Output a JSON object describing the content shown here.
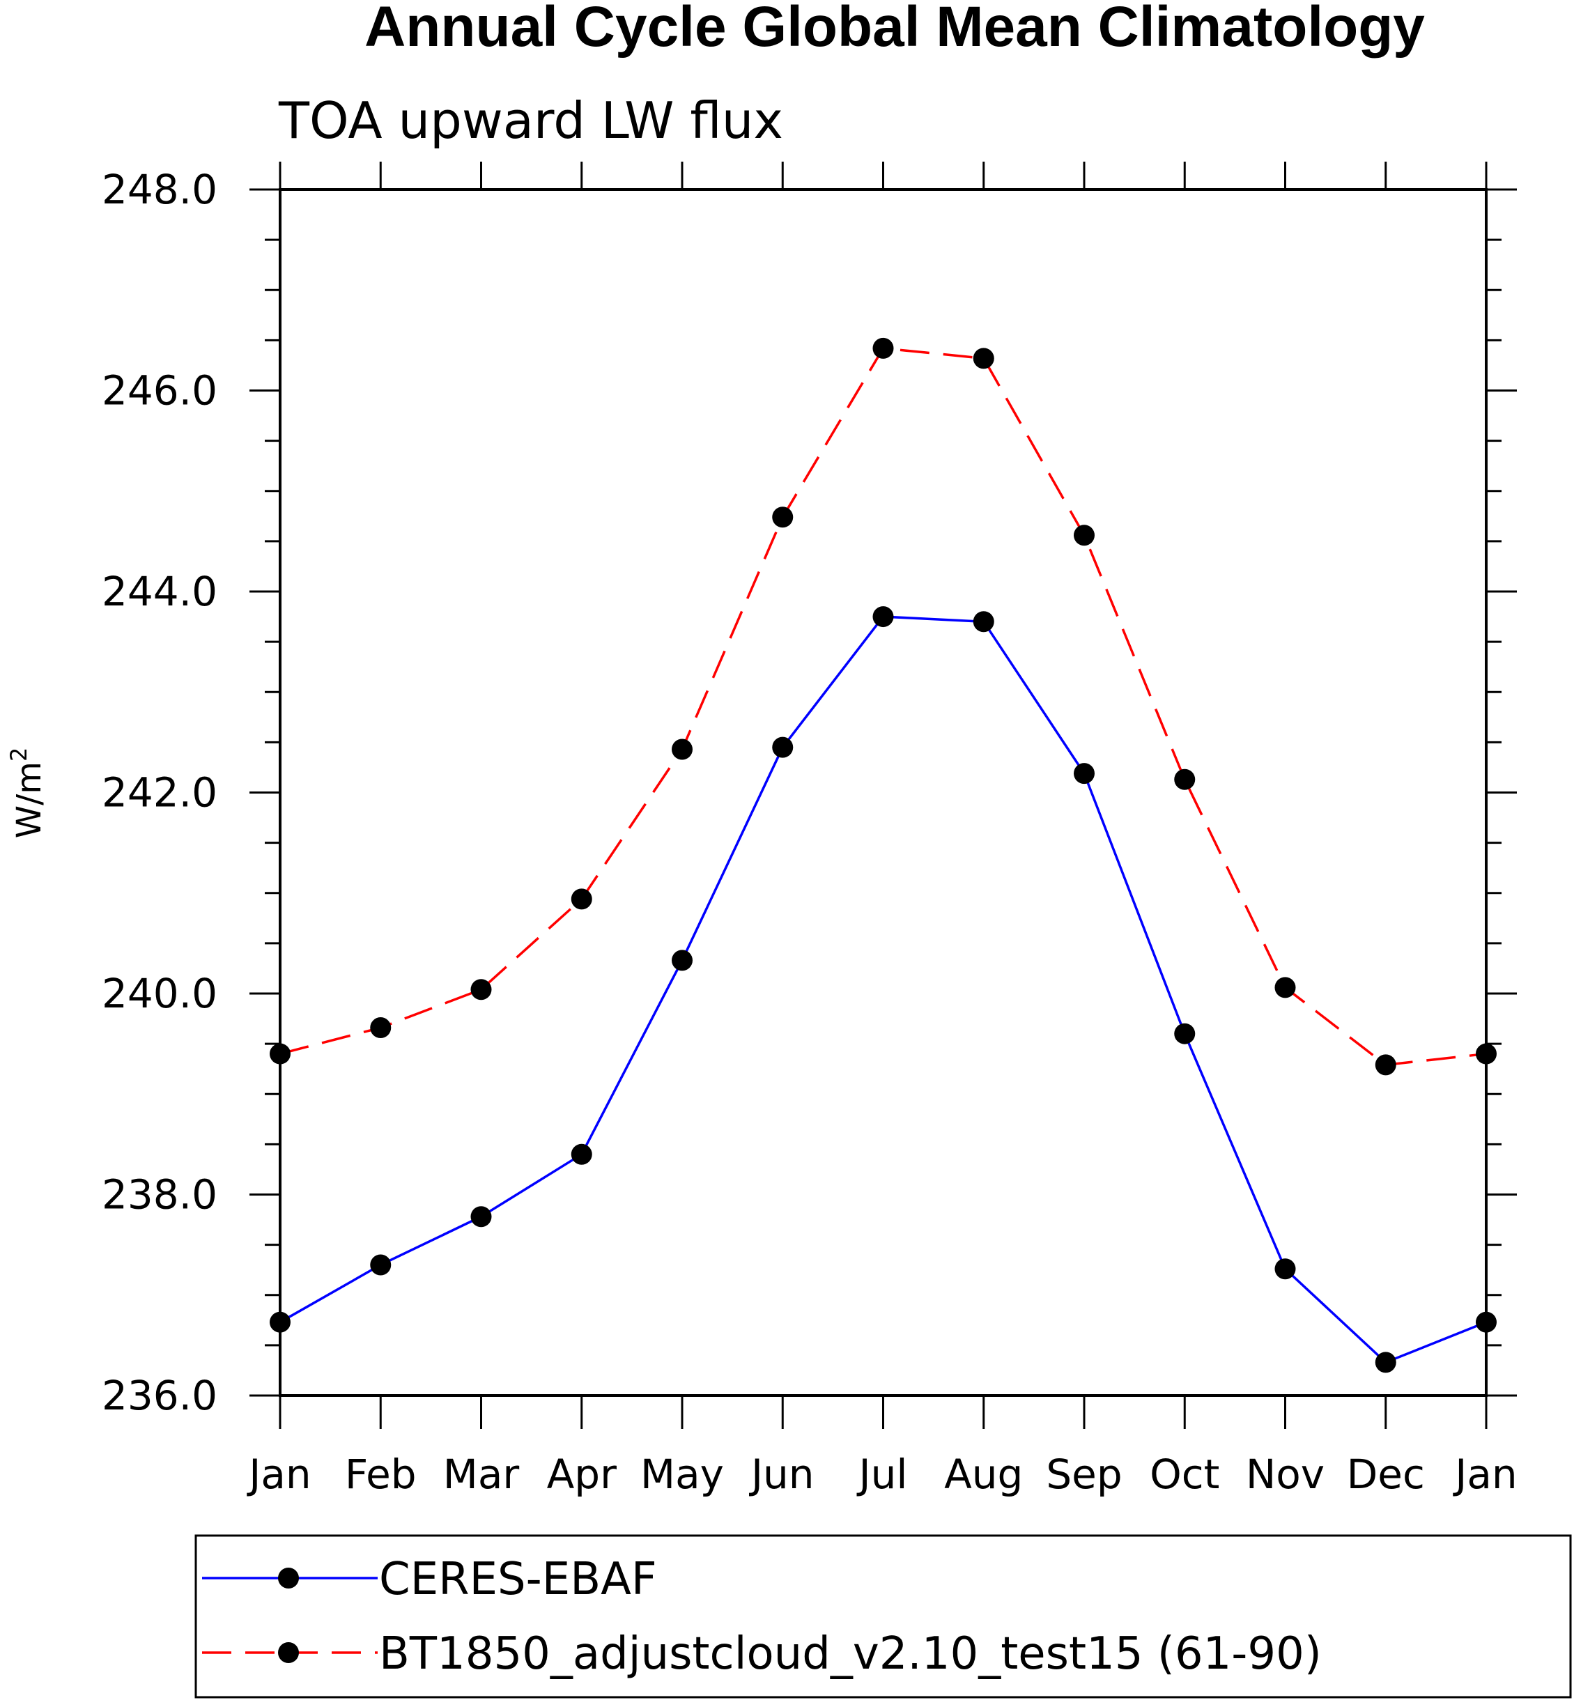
{
  "chart_data": {
    "type": "line",
    "title": "Annual Cycle Global Mean Climatology",
    "subtitle": "TOA upward LW flux",
    "ylabel": "W/m",
    "ylabel_sup": "2",
    "categories": [
      "Jan",
      "Feb",
      "Mar",
      "Apr",
      "May",
      "Jun",
      "Jul",
      "Aug",
      "Sep",
      "Oct",
      "Nov",
      "Dec",
      "Jan"
    ],
    "ylim": [
      236.0,
      248.0
    ],
    "yticks": [
      "236.0",
      "238.0",
      "240.0",
      "242.0",
      "244.0",
      "246.0",
      "248.0"
    ],
    "ytick_values": [
      236,
      238,
      240,
      242,
      244,
      246,
      248
    ],
    "grid": false,
    "legend_position": "bottom",
    "series": [
      {
        "name": "CERES-EBAF",
        "color": "#0000ff",
        "dash": "solid",
        "marker": "filled-circle",
        "values": [
          236.73,
          237.3,
          237.78,
          238.4,
          240.33,
          242.45,
          243.75,
          243.7,
          242.19,
          239.6,
          237.26,
          236.33,
          236.73
        ]
      },
      {
        "name": "BT1850_adjustcloud_v2.10_test15 (61-90)",
        "color": "#ff0000",
        "dash": "dashed",
        "marker": "filled-circle",
        "values": [
          239.4,
          239.66,
          240.04,
          240.94,
          242.43,
          244.74,
          246.42,
          246.32,
          244.56,
          242.13,
          240.06,
          239.29,
          239.4
        ]
      }
    ]
  }
}
